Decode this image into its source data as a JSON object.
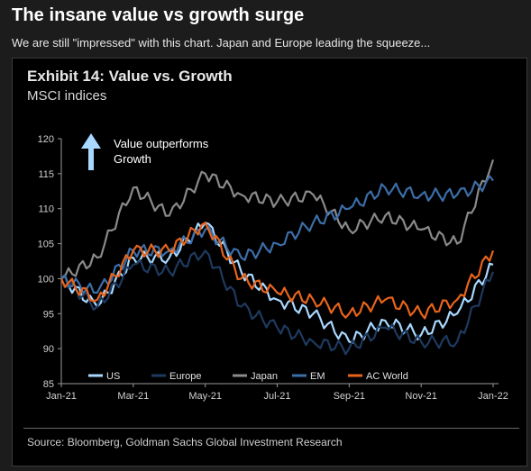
{
  "post": {
    "title": "The insane value vs growth surge",
    "subtitle": "We are still \"impressed\" with this chart. Japan and Europe leading the squeeze..."
  },
  "chart_data": {
    "type": "line",
    "title": "Exhibit 14: Value vs. Growth",
    "subtitle": "MSCI indices",
    "source": "Source: Bloomberg, Goldman Sachs Global Investment Research",
    "annotation": [
      "Value outperforms",
      "Growth"
    ],
    "x": [
      "Jan-21",
      "Feb-21",
      "Mar-21",
      "Apr-21",
      "May-21",
      "Jun-21",
      "Jul-21",
      "Aug-21",
      "Sep-21",
      "Oct-21",
      "Nov-21",
      "Dec-21",
      "Jan-22"
    ],
    "x_ticks": [
      "Jan-21",
      "Mar-21",
      "May-21",
      "Jul-21",
      "Sep-21",
      "Nov-21",
      "Jan-22"
    ],
    "ylim": [
      85,
      120
    ],
    "y_ticks": [
      85,
      90,
      95,
      100,
      105,
      110,
      115,
      120
    ],
    "legend_position": "bottom",
    "series": [
      {
        "name": "US",
        "color": "#a8d8ff",
        "values": [
          100,
          96,
          103,
          103,
          108,
          101,
          97,
          95,
          91,
          94,
          92,
          95,
          102
        ]
      },
      {
        "name": "Europe",
        "color": "#1e3a5f",
        "values": [
          100,
          96,
          102,
          101,
          104,
          96,
          93,
          91,
          90,
          93,
          91,
          91,
          101
        ]
      },
      {
        "name": "Japan",
        "color": "#8a8a8a",
        "values": [
          100,
          103,
          113,
          109,
          115,
          112,
          111,
          112,
          107,
          109,
          107,
          105,
          117
        ]
      },
      {
        "name": "EM",
        "color": "#3c6ea8",
        "values": [
          100,
          98,
          104,
          104,
          107,
          103,
          105,
          108,
          110,
          113,
          112,
          112,
          114
        ]
      },
      {
        "name": "AC World",
        "color": "#e8641b",
        "values": [
          100,
          97,
          104,
          104,
          108,
          100,
          98,
          97,
          95,
          97,
          95,
          97,
          104
        ]
      }
    ]
  }
}
